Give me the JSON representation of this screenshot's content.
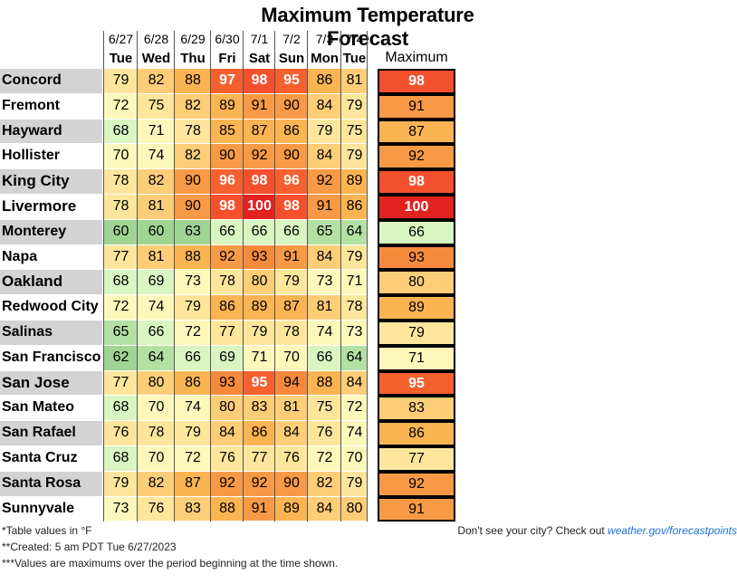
{
  "chart_data": {
    "type": "table",
    "title": "Maximum Temperature Forecast",
    "dates": [
      "6/27",
      "6/28",
      "6/29",
      "6/30",
      "7/1",
      "7/2",
      "7/3",
      "7/4"
    ],
    "days": [
      "Tue",
      "Wed",
      "Thu",
      "Fri",
      "Sat",
      "Sun",
      "Mon",
      "Tue"
    ],
    "max_header": "Maximum",
    "rows": [
      {
        "city": "Concord",
        "values": [
          79,
          82,
          88,
          97,
          98,
          95,
          86,
          81
        ],
        "max": 98
      },
      {
        "city": "Fremont",
        "values": [
          72,
          75,
          82,
          89,
          91,
          90,
          84,
          79
        ],
        "max": 91
      },
      {
        "city": "Hayward",
        "values": [
          68,
          71,
          78,
          85,
          87,
          86,
          79,
          75
        ],
        "max": 87
      },
      {
        "city": "Hollister",
        "values": [
          70,
          74,
          82,
          90,
          92,
          90,
          84,
          79
        ],
        "max": 92
      },
      {
        "city": "King City",
        "values": [
          78,
          82,
          90,
          96,
          98,
          96,
          92,
          89
        ],
        "max": 98
      },
      {
        "city": "Livermore",
        "values": [
          78,
          81,
          90,
          98,
          100,
          98,
          91,
          86
        ],
        "max": 100
      },
      {
        "city": "Monterey",
        "values": [
          60,
          60,
          63,
          66,
          66,
          66,
          65,
          64
        ],
        "max": 66
      },
      {
        "city": "Napa",
        "values": [
          77,
          81,
          88,
          92,
          93,
          91,
          84,
          79
        ],
        "max": 93
      },
      {
        "city": "Oakland",
        "values": [
          68,
          69,
          73,
          78,
          80,
          79,
          73,
          71
        ],
        "max": 80
      },
      {
        "city": "Redwood City",
        "values": [
          72,
          74,
          79,
          86,
          89,
          87,
          81,
          78
        ],
        "max": 89
      },
      {
        "city": "Salinas",
        "values": [
          65,
          66,
          72,
          77,
          79,
          78,
          74,
          73
        ],
        "max": 79
      },
      {
        "city": "San Francisco",
        "values": [
          62,
          64,
          66,
          69,
          71,
          70,
          66,
          64
        ],
        "max": 71
      },
      {
        "city": "San Jose",
        "values": [
          77,
          80,
          86,
          93,
          95,
          94,
          88,
          84
        ],
        "max": 95
      },
      {
        "city": "San Mateo",
        "values": [
          68,
          70,
          74,
          80,
          83,
          81,
          75,
          72
        ],
        "max": 83
      },
      {
        "city": "San Rafael",
        "values": [
          76,
          78,
          79,
          84,
          86,
          84,
          76,
          74
        ],
        "max": 86
      },
      {
        "city": "Santa Cruz",
        "values": [
          68,
          70,
          72,
          76,
          77,
          76,
          72,
          70
        ],
        "max": 77
      },
      {
        "city": "Santa Rosa",
        "values": [
          79,
          82,
          87,
          92,
          92,
          90,
          82,
          79
        ],
        "max": 92
      },
      {
        "city": "Sunnyvale",
        "values": [
          73,
          76,
          83,
          88,
          91,
          89,
          84,
          80
        ],
        "max": 91
      }
    ]
  },
  "footnotes": [
    "*Table values in °F",
    "**Created: 5 am PDT Tue 6/27/2023",
    "***Values are maximums over the period beginning at the time shown."
  ],
  "cta": {
    "text": "Don't see your city? Check out ",
    "link": "weather.gov/forecastpoints"
  }
}
